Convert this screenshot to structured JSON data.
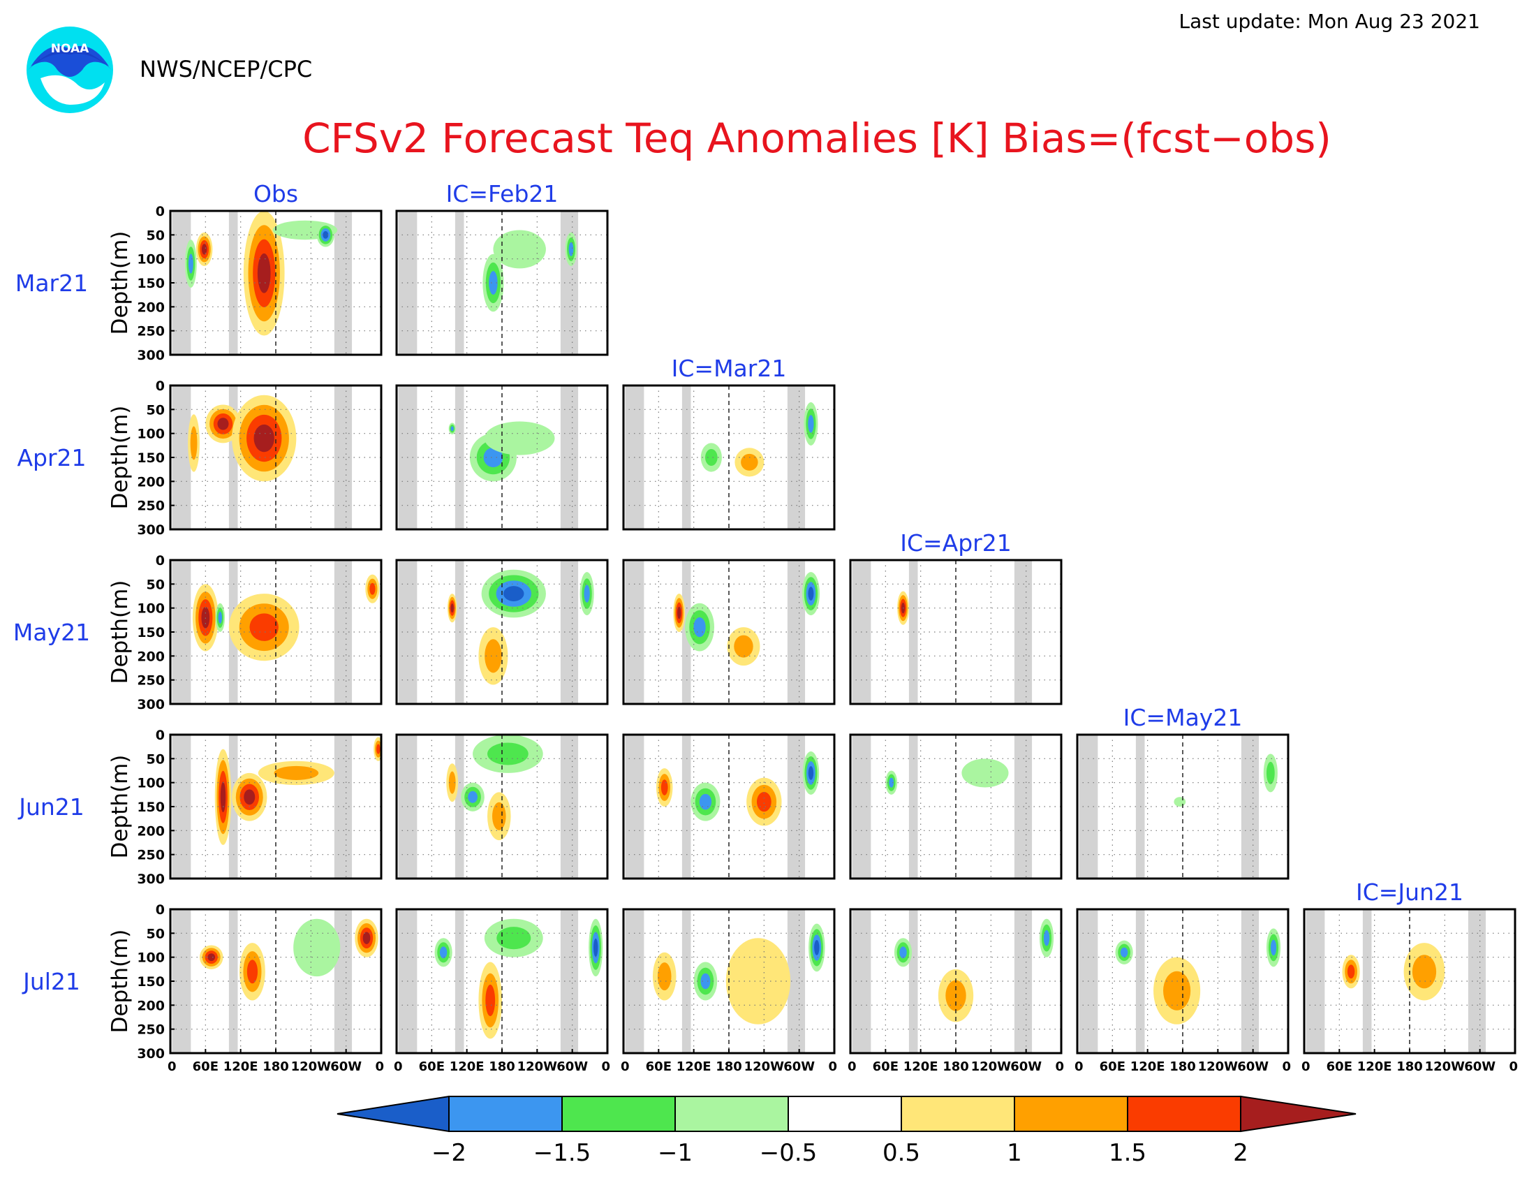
{
  "header": {
    "agency": "NWS/NCEP/CPC",
    "logo_text": "NOAA",
    "last_update": "Last update: Mon Aug 23 2021"
  },
  "chart_data": {
    "type": "heatmap",
    "title": "CFSv2 Forecast Teq Anomalies [K] Bias=(fcst−obs)",
    "ylabel": "Depth(m)",
    "y_ticks": [
      "0",
      "50",
      "100",
      "150",
      "200",
      "250",
      "300"
    ],
    "ylim": [
      0,
      300
    ],
    "x_ticks": [
      "0",
      "60E",
      "120E",
      "180",
      "120W",
      "60W",
      "0"
    ],
    "xlim": [
      0,
      360
    ],
    "rows": [
      "Mar21",
      "Apr21",
      "May21",
      "Jun21",
      "Jul21"
    ],
    "columns": [
      "Obs",
      "IC=Feb21",
      "IC=Mar21",
      "IC=Apr21",
      "IC=May21",
      "IC=Jun21"
    ],
    "colorbar": {
      "levels": [
        "−2",
        "−1.5",
        "−1",
        "−0.5",
        "0.5",
        "1",
        "1.5",
        "2"
      ],
      "colors": [
        "#1a5ec9",
        "#3c96f0",
        "#4ee64e",
        "#aaf5a0",
        "#ffffff",
        "#ffe678",
        "#ffa000",
        "#fa3c00",
        "#a61e1e"
      ]
    },
    "mask_color": "#d3d3d3"
  }
}
